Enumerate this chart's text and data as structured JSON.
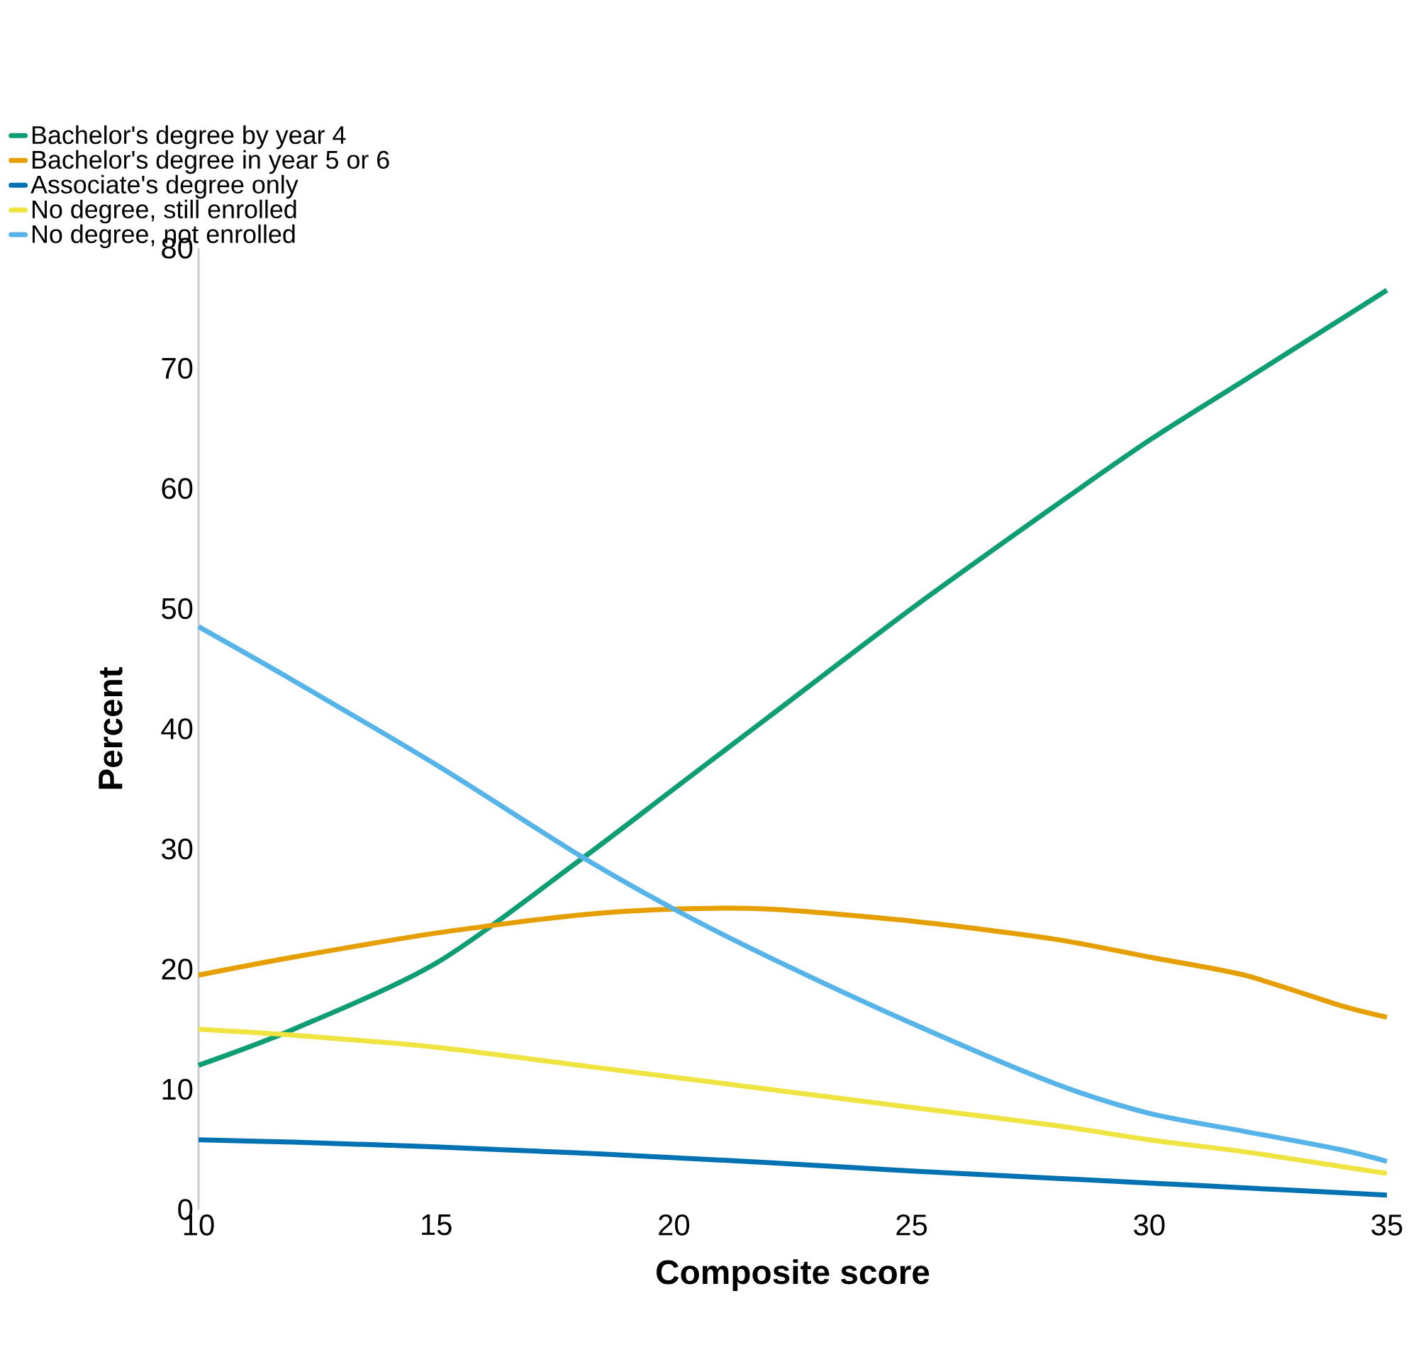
{
  "chart_data": {
    "type": "line",
    "xlabel": "Composite score",
    "ylabel": "Percent",
    "xlim": [
      10,
      35
    ],
    "xticks": [
      10,
      15,
      20,
      25,
      30,
      35
    ],
    "ylim": [
      0,
      80
    ],
    "yticks": [
      0,
      10,
      20,
      30,
      40,
      50,
      60,
      70,
      80
    ],
    "grid": false,
    "legend": "top left",
    "marker": "none",
    "line_style": "solid",
    "x": [
      10,
      12,
      15,
      18,
      20,
      22,
      25,
      28,
      30,
      32,
      34,
      35
    ],
    "series": [
      {
        "name": "Bachelor's degree by year 4",
        "color": "#0f9d74",
        "values": [
          12,
          15,
          20.5,
          29,
          35,
          41,
          50,
          58.5,
          64,
          69,
          74,
          76.5
        ]
      },
      {
        "name": "Bachelor's degree in year 5 or 6",
        "color": "#e69f00",
        "values": [
          19.5,
          21,
          23,
          24.5,
          25,
          25,
          24,
          22.5,
          21,
          19.5,
          17,
          16
        ]
      },
      {
        "name": "Associate's degree only",
        "color": "#0072b2",
        "values": [
          5.8,
          5.6,
          5.2,
          4.7,
          4.3,
          3.9,
          3.2,
          2.6,
          2.2,
          1.8,
          1.4,
          1.2
        ]
      },
      {
        "name": "No degree, still enrolled",
        "color": "#f0e442",
        "values": [
          15,
          14.5,
          13.5,
          12,
          11,
          10,
          8.5,
          7,
          5.8,
          4.8,
          3.6,
          3
        ]
      },
      {
        "name": "No degree, not enrolled",
        "color": "#56b4e9",
        "values": [
          48.5,
          44,
          37,
          29.5,
          25,
          21,
          15.5,
          10.5,
          8,
          6.5,
          5,
          4
        ]
      }
    ]
  }
}
